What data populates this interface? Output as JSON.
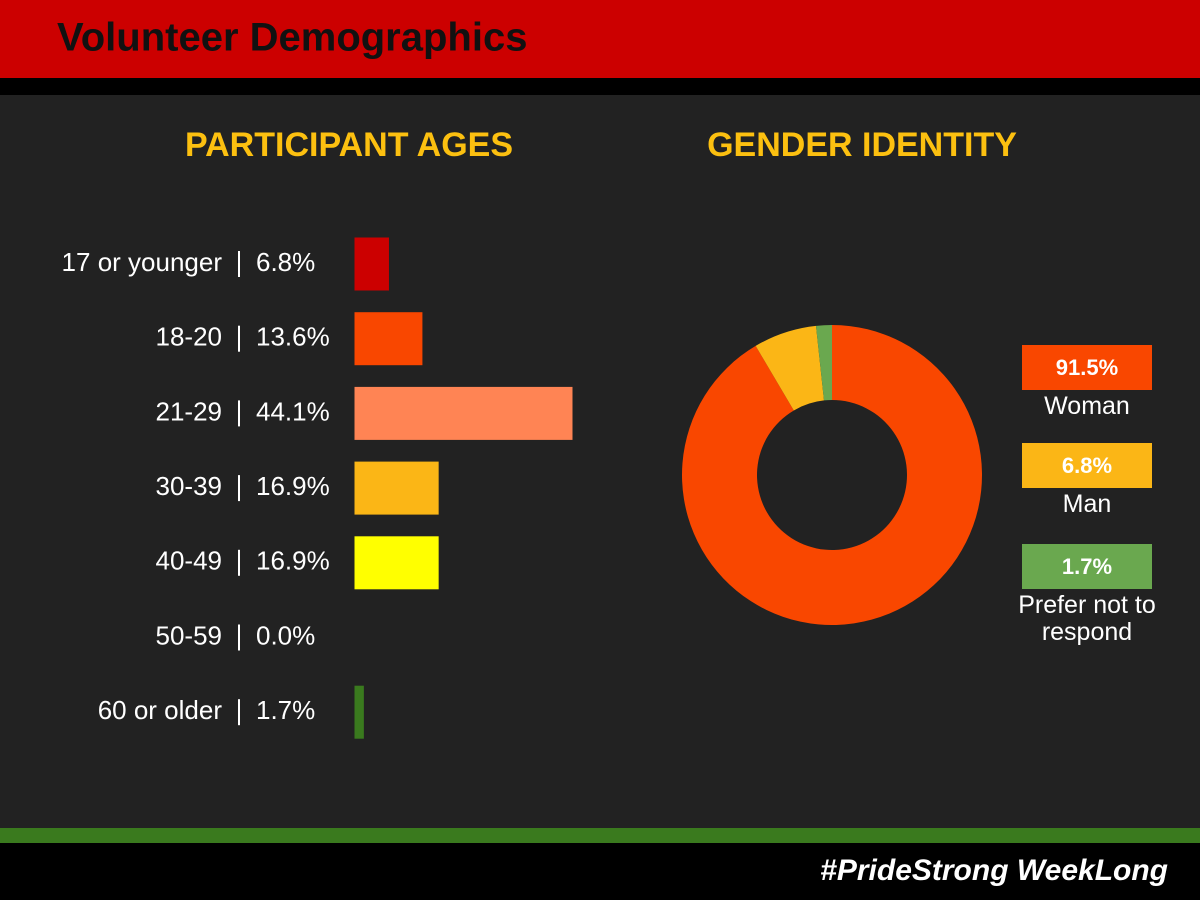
{
  "header": {
    "title": "Volunteer Demographics"
  },
  "footer": {
    "hashtag": "#PrideStrong WeekLong"
  },
  "chart_data": [
    {
      "type": "bar",
      "horizontal": true,
      "title": "PARTICIPANT AGES",
      "categories": [
        "17 or younger",
        "18-20",
        "21-29",
        "30-39",
        "40-49",
        "50-59",
        "60 or older"
      ],
      "values": [
        6.8,
        13.6,
        44.1,
        16.9,
        16.9,
        0.0,
        1.7
      ],
      "value_labels": [
        "6.8%",
        "13.6%",
        "44.1%",
        "16.9%",
        "16.9%",
        "0.0%",
        "1.7%"
      ],
      "colors": [
        "#cc0000",
        "#f94700",
        "#ff8454",
        "#fbb616",
        "#ffff00",
        "#3a7a1e",
        "#3a7a1e"
      ]
    },
    {
      "type": "donut",
      "title": "GENDER IDENTITY",
      "categories": [
        "Woman",
        "Man",
        "Prefer not to respond"
      ],
      "values": [
        91.5,
        6.8,
        1.7
      ],
      "value_labels": [
        "91.5%",
        "6.8%",
        "1.7%"
      ],
      "colors": [
        "#f94700",
        "#fbb616",
        "#6aa84f"
      ]
    }
  ]
}
